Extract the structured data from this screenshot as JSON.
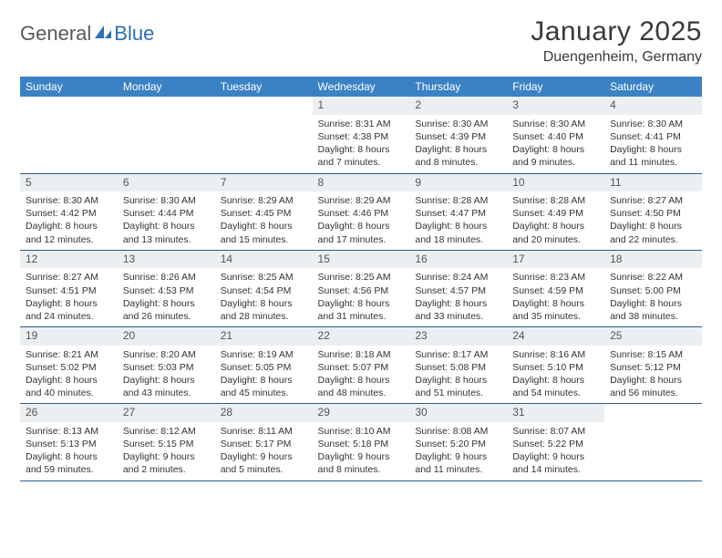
{
  "logo": {
    "part1": "General",
    "part2": "Blue"
  },
  "title": "January 2025",
  "location": "Duengenheim, Germany",
  "colors": {
    "header_bg": "#3b82c4",
    "header_text": "#ffffff",
    "daynum_bg": "#eceff1",
    "border": "#2a5d8f",
    "logo_accent": "#2c6fb3",
    "text": "#333333"
  },
  "weekdays": [
    "Sunday",
    "Monday",
    "Tuesday",
    "Wednesday",
    "Thursday",
    "Friday",
    "Saturday"
  ],
  "weeks": [
    [
      null,
      null,
      null,
      {
        "n": "1",
        "sr": "8:31 AM",
        "ss": "4:38 PM",
        "dl": "8 hours and 7 minutes."
      },
      {
        "n": "2",
        "sr": "8:30 AM",
        "ss": "4:39 PM",
        "dl": "8 hours and 8 minutes."
      },
      {
        "n": "3",
        "sr": "8:30 AM",
        "ss": "4:40 PM",
        "dl": "8 hours and 9 minutes."
      },
      {
        "n": "4",
        "sr": "8:30 AM",
        "ss": "4:41 PM",
        "dl": "8 hours and 11 minutes."
      }
    ],
    [
      {
        "n": "5",
        "sr": "8:30 AM",
        "ss": "4:42 PM",
        "dl": "8 hours and 12 minutes."
      },
      {
        "n": "6",
        "sr": "8:30 AM",
        "ss": "4:44 PM",
        "dl": "8 hours and 13 minutes."
      },
      {
        "n": "7",
        "sr": "8:29 AM",
        "ss": "4:45 PM",
        "dl": "8 hours and 15 minutes."
      },
      {
        "n": "8",
        "sr": "8:29 AM",
        "ss": "4:46 PM",
        "dl": "8 hours and 17 minutes."
      },
      {
        "n": "9",
        "sr": "8:28 AM",
        "ss": "4:47 PM",
        "dl": "8 hours and 18 minutes."
      },
      {
        "n": "10",
        "sr": "8:28 AM",
        "ss": "4:49 PM",
        "dl": "8 hours and 20 minutes."
      },
      {
        "n": "11",
        "sr": "8:27 AM",
        "ss": "4:50 PM",
        "dl": "8 hours and 22 minutes."
      }
    ],
    [
      {
        "n": "12",
        "sr": "8:27 AM",
        "ss": "4:51 PM",
        "dl": "8 hours and 24 minutes."
      },
      {
        "n": "13",
        "sr": "8:26 AM",
        "ss": "4:53 PM",
        "dl": "8 hours and 26 minutes."
      },
      {
        "n": "14",
        "sr": "8:25 AM",
        "ss": "4:54 PM",
        "dl": "8 hours and 28 minutes."
      },
      {
        "n": "15",
        "sr": "8:25 AM",
        "ss": "4:56 PM",
        "dl": "8 hours and 31 minutes."
      },
      {
        "n": "16",
        "sr": "8:24 AM",
        "ss": "4:57 PM",
        "dl": "8 hours and 33 minutes."
      },
      {
        "n": "17",
        "sr": "8:23 AM",
        "ss": "4:59 PM",
        "dl": "8 hours and 35 minutes."
      },
      {
        "n": "18",
        "sr": "8:22 AM",
        "ss": "5:00 PM",
        "dl": "8 hours and 38 minutes."
      }
    ],
    [
      {
        "n": "19",
        "sr": "8:21 AM",
        "ss": "5:02 PM",
        "dl": "8 hours and 40 minutes."
      },
      {
        "n": "20",
        "sr": "8:20 AM",
        "ss": "5:03 PM",
        "dl": "8 hours and 43 minutes."
      },
      {
        "n": "21",
        "sr": "8:19 AM",
        "ss": "5:05 PM",
        "dl": "8 hours and 45 minutes."
      },
      {
        "n": "22",
        "sr": "8:18 AM",
        "ss": "5:07 PM",
        "dl": "8 hours and 48 minutes."
      },
      {
        "n": "23",
        "sr": "8:17 AM",
        "ss": "5:08 PM",
        "dl": "8 hours and 51 minutes."
      },
      {
        "n": "24",
        "sr": "8:16 AM",
        "ss": "5:10 PM",
        "dl": "8 hours and 54 minutes."
      },
      {
        "n": "25",
        "sr": "8:15 AM",
        "ss": "5:12 PM",
        "dl": "8 hours and 56 minutes."
      }
    ],
    [
      {
        "n": "26",
        "sr": "8:13 AM",
        "ss": "5:13 PM",
        "dl": "8 hours and 59 minutes."
      },
      {
        "n": "27",
        "sr": "8:12 AM",
        "ss": "5:15 PM",
        "dl": "9 hours and 2 minutes."
      },
      {
        "n": "28",
        "sr": "8:11 AM",
        "ss": "5:17 PM",
        "dl": "9 hours and 5 minutes."
      },
      {
        "n": "29",
        "sr": "8:10 AM",
        "ss": "5:18 PM",
        "dl": "9 hours and 8 minutes."
      },
      {
        "n": "30",
        "sr": "8:08 AM",
        "ss": "5:20 PM",
        "dl": "9 hours and 11 minutes."
      },
      {
        "n": "31",
        "sr": "8:07 AM",
        "ss": "5:22 PM",
        "dl": "9 hours and 14 minutes."
      },
      null
    ]
  ],
  "labels": {
    "sunrise": "Sunrise:",
    "sunset": "Sunset:",
    "daylight": "Daylight:"
  }
}
